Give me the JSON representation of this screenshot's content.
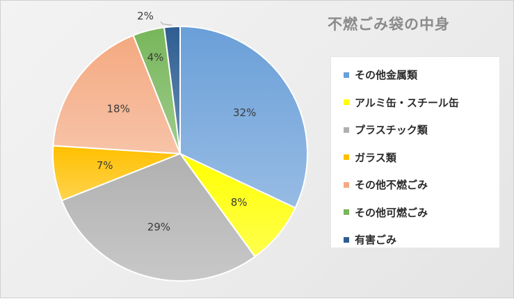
{
  "chart_data": {
    "type": "pie",
    "title": "不燃ごみ袋の中身",
    "legend_position": "right",
    "slices": [
      {
        "label": "その他金属類",
        "value": 32,
        "display": "32%",
        "color": "#6a9fd8"
      },
      {
        "label": "アルミ缶・スチール缶",
        "value": 8,
        "display": "8%",
        "color": "#ffff00"
      },
      {
        "label": "プラスチック類",
        "value": 29,
        "display": "29%",
        "color": "#b0b0b0"
      },
      {
        "label": "ガラス類",
        "value": 7,
        "display": "7%",
        "color": "#ffc000"
      },
      {
        "label": "その他不燃ごみ",
        "value": 18,
        "display": "18%",
        "color": "#f4a981"
      },
      {
        "label": "その他可燃ごみ",
        "value": 4,
        "display": "4%",
        "color": "#77b65a"
      },
      {
        "label": "有害ごみ",
        "value": 2,
        "display": "2%",
        "color": "#2e5d91"
      }
    ]
  }
}
